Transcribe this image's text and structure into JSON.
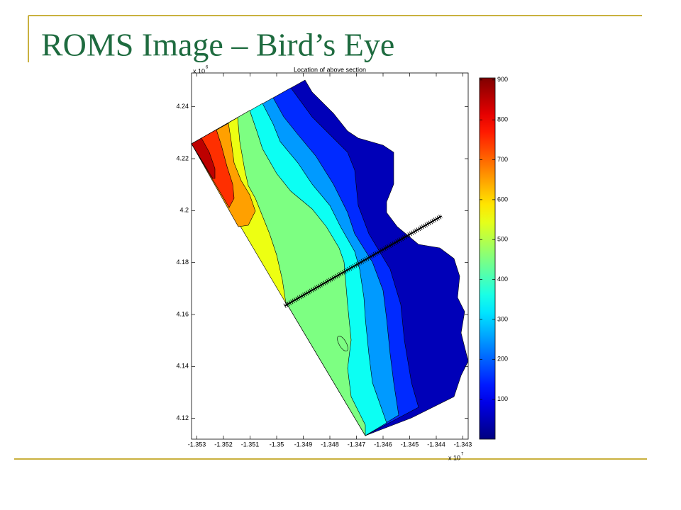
{
  "slide": {
    "title": "ROMS Image – Bird’s Eye"
  },
  "chart_data": {
    "type": "contour",
    "title": "Location of above section",
    "xlim": [
      -1.3532,
      -1.3428
    ],
    "xticks": [
      -1.353,
      -1.352,
      -1.351,
      -1.35,
      -1.349,
      -1.348,
      -1.347,
      -1.346,
      -1.345,
      -1.344,
      -1.343
    ],
    "x_scale": {
      "label": "x 10",
      "exponent": 7
    },
    "ylim": [
      4.112,
      4.253
    ],
    "yticks": [
      4.12,
      4.14,
      4.16,
      4.18,
      4.2,
      4.22,
      4.24
    ],
    "y_scale": {
      "label": "x 10",
      "exponent": 6
    },
    "colormap": "jet",
    "colorbar": {
      "lim": [
        0,
        905
      ],
      "ticks": [
        100,
        200,
        300,
        400,
        500,
        600,
        700,
        800,
        900
      ]
    },
    "section": {
      "x": [
        -1.3497,
        -1.3438
      ],
      "y": [
        4.1633,
        4.1979
      ],
      "color": "#000000"
    }
  }
}
